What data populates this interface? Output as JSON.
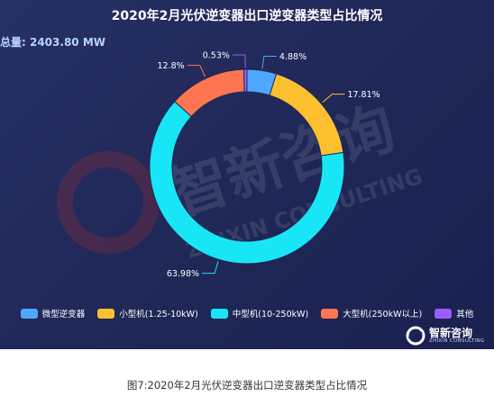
{
  "title": "2020年2月光伏逆变器出口逆变器类型占比情况",
  "total": {
    "label": "总量: ",
    "value": "2403.80 MW"
  },
  "watermark": {
    "text": "智新咨询",
    "sub": "ZHIXIN CONSULTING"
  },
  "footer_logo": {
    "text": "智新咨询",
    "sub": "ZHIXIN CONSULTING",
    "icon": "zhixin-logo-icon"
  },
  "caption": "图7:2020年2月光伏逆变器出口逆变器类型占比情况",
  "chart_data": {
    "type": "pie",
    "subtype": "donut",
    "title": "2020年2月光伏逆变器出口逆变器类型占比情况",
    "unit": "%",
    "legend_position": "bottom",
    "slices": [
      {
        "name": "微型逆变器",
        "value": 4.88,
        "label": "4.88%",
        "color": "#4fa8ff"
      },
      {
        "name": "小型机(1.25-10kW)",
        "value": 17.81,
        "label": "17.81%",
        "color": "#fdc02f"
      },
      {
        "name": "中型机(10-250kW)",
        "value": 63.98,
        "label": "63.98%",
        "color": "#18e6f7"
      },
      {
        "name": "大型机(250kW以上)",
        "value": 12.8,
        "label": "12.8%",
        "color": "#ff7552"
      },
      {
        "name": "其他",
        "value": 0.53,
        "label": "0.53%",
        "color": "#9b5cff"
      }
    ]
  }
}
